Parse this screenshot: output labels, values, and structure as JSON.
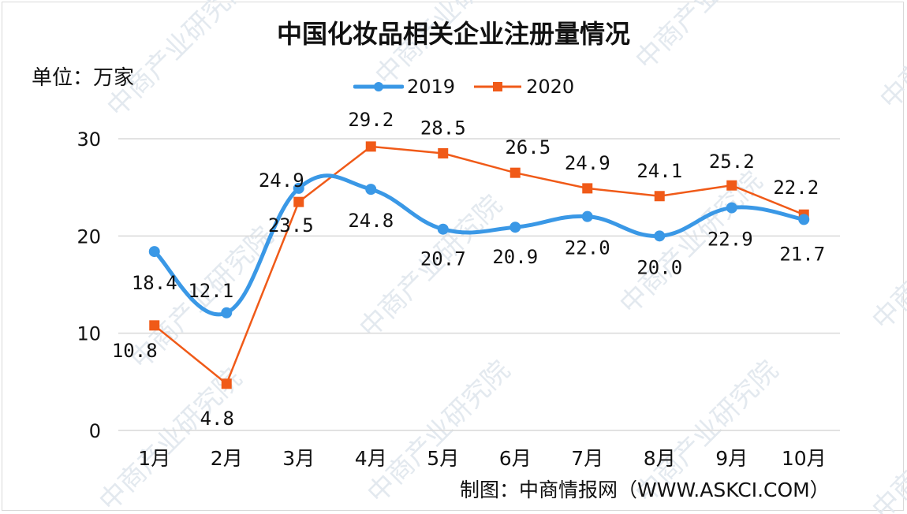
{
  "title": "中国化妆品相关企业注册量情况",
  "unit_label": "单位：万家",
  "source": "制图：中商情报网（WWW.ASKCI.COM）",
  "watermark": "中商产业研究院",
  "colors": {
    "series_2019": "#3a98e6",
    "series_2020": "#f05a18",
    "grid": "#d9d9d9",
    "text": "#111111"
  },
  "chart_data": {
    "type": "line",
    "categories": [
      "1月",
      "2月",
      "3月",
      "4月",
      "5月",
      "6月",
      "7月",
      "8月",
      "9月",
      "10月"
    ],
    "series": [
      {
        "name": "2019",
        "values": [
          18.4,
          12.1,
          24.9,
          24.8,
          20.7,
          20.9,
          22.0,
          20.0,
          22.9,
          21.7
        ],
        "style": "smooth",
        "marker": "circle"
      },
      {
        "name": "2020",
        "values": [
          10.8,
          4.8,
          23.5,
          29.2,
          28.5,
          26.5,
          24.9,
          24.1,
          25.2,
          22.2
        ],
        "style": "straight",
        "marker": "square"
      }
    ],
    "data_labels_2019": [
      "18.4",
      "12.1",
      "24.9",
      "24.8",
      "20.7",
      "20.9",
      "22.0",
      "20.0",
      "22.9",
      "21.7"
    ],
    "data_labels_2020": [
      "10.8",
      "4.8",
      "23.5",
      "29.2",
      "28.5",
      "26.5",
      "24.9",
      "24.1",
      "25.2",
      "22.2"
    ],
    "y_ticks": [
      "0",
      "10",
      "20",
      "30"
    ],
    "ylim": [
      0,
      30
    ],
    "grid": true,
    "legend_position": "top-center"
  }
}
